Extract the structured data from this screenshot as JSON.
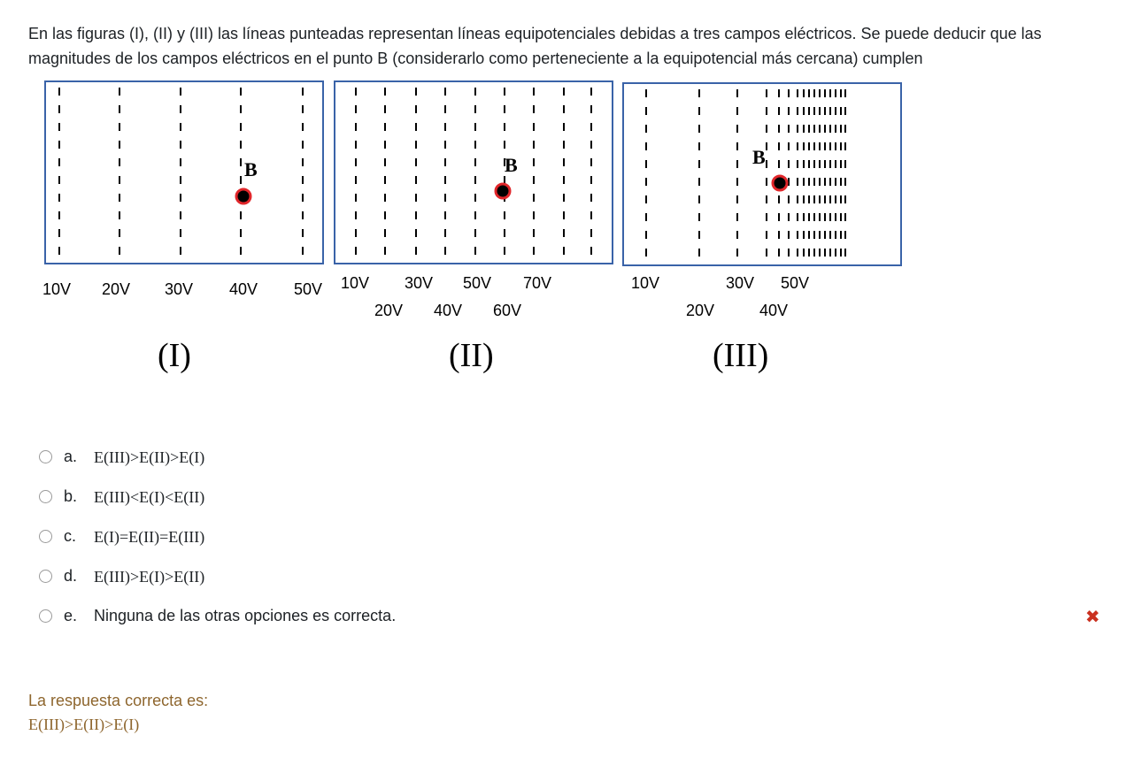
{
  "question": {
    "text": "En las figuras (I), (II) y (III) las líneas punteadas representan líneas equipotenciales debidas a tres campos eléctricos. Se puede deducir que las magnitudes de los campos eléctricos en el punto B (considerarlo como perteneciente a la equipotencial más cercana) cumplen"
  },
  "figures": [
    {
      "label": "(I)",
      "point": "B",
      "top_labels": [
        "10V",
        "20V",
        "30V",
        "40V",
        "50V"
      ],
      "bottom_labels": []
    },
    {
      "label": "(II)",
      "point": "B",
      "top_labels": [
        "10V",
        "30V",
        "50V",
        "70V"
      ],
      "bottom_labels": [
        "20V",
        "40V",
        "60V"
      ]
    },
    {
      "label": "(III)",
      "point": "B",
      "top_labels": [
        "10V",
        "30V",
        "50V"
      ],
      "bottom_labels": [
        "20V",
        "40V"
      ]
    }
  ],
  "colors": {
    "point": "#e0262a",
    "frame": "#3a63a8",
    "feedback": "#8e662e",
    "incorrect": "#ca3120"
  },
  "options": [
    {
      "letter": "a.",
      "text": "E(III)>E(II)>E(I)"
    },
    {
      "letter": "b.",
      "text": "E(III)<E(I)<E(II)"
    },
    {
      "letter": "c.",
      "text": "E(I)=E(II)=E(III)"
    },
    {
      "letter": "d.",
      "text": "E(III)>E(I)>E(II)"
    },
    {
      "letter": "e.",
      "text": "Ninguna de las otras opciones es correcta."
    }
  ],
  "feedback": {
    "label": "La respuesta correcta es:",
    "answer": "E(III)>E(II)>E(I)"
  }
}
